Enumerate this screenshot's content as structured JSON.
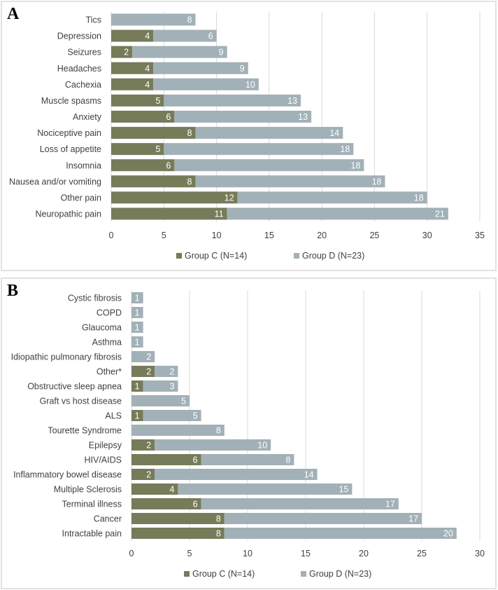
{
  "colors": {
    "group_c": "#767b59",
    "group_d": "#a2b1b7",
    "grid": "#d9d9d9",
    "text": "#404040"
  },
  "chart_data": [
    {
      "type": "bar",
      "orientation": "horizontal",
      "stacked": true,
      "panel_label": "A",
      "categories": [
        "Tics",
        "Depression",
        "Seizures",
        "Headaches",
        "Cachexia",
        "Muscle spasms",
        "Anxiety",
        "Nociceptive pain",
        "Loss of appetite",
        "Insomnia",
        "Nausea and/or vomiting",
        "Other pain",
        "Neuropathic pain"
      ],
      "series": [
        {
          "name": "Group C (N=14)",
          "values": [
            0,
            4,
            2,
            4,
            4,
            5,
            6,
            8,
            5,
            6,
            8,
            12,
            11
          ]
        },
        {
          "name": "Group D (N=23)",
          "values": [
            8,
            6,
            9,
            9,
            10,
            13,
            13,
            14,
            18,
            18,
            18,
            18,
            21
          ]
        }
      ],
      "xlim": [
        0,
        35
      ],
      "xticks": [
        0,
        5,
        10,
        15,
        20,
        25,
        30,
        35
      ],
      "grid": true,
      "legend": "bottom"
    },
    {
      "type": "bar",
      "orientation": "horizontal",
      "stacked": true,
      "panel_label": "B",
      "categories": [
        "Cystic fibrosis",
        "COPD",
        "Glaucoma",
        "Asthma",
        "Idiopathic pulmonary fibrosis",
        "Other*",
        "Obstructive sleep apnea",
        "Graft vs host disease",
        "ALS",
        "Tourette Syndrome",
        "Epilepsy",
        "HIV/AIDS",
        "Inflammatory bowel disease",
        "Multiple Sclerosis",
        "Terminal illness",
        "Cancer",
        "Intractable pain"
      ],
      "series": [
        {
          "name": "Group C (N=14)",
          "values": [
            0,
            0,
            0,
            0,
            0,
            2,
            1,
            0,
            1,
            0,
            2,
            6,
            2,
            4,
            6,
            8,
            8
          ]
        },
        {
          "name": "Group D (N=23)",
          "values": [
            1,
            1,
            1,
            1,
            2,
            2,
            3,
            5,
            5,
            8,
            10,
            8,
            14,
            15,
            17,
            17,
            20
          ]
        }
      ],
      "xlim": [
        0,
        30
      ],
      "xticks": [
        0,
        5,
        10,
        15,
        20,
        25,
        30
      ],
      "grid": true,
      "legend": "bottom"
    }
  ]
}
